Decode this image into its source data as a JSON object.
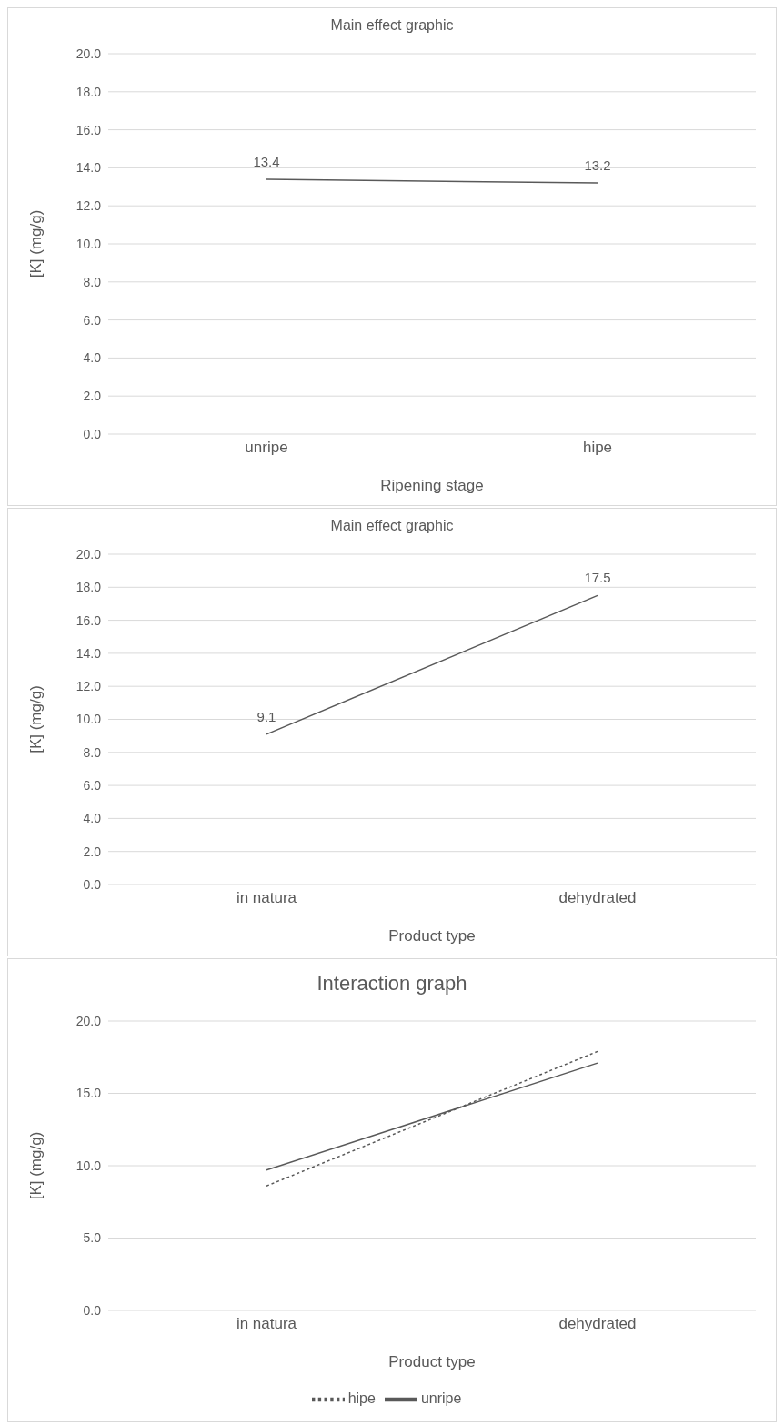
{
  "chart_data": [
    {
      "type": "line",
      "title": "Main effect graphic",
      "xlabel": "Ripening stage",
      "ylabel": "[K] (mg/g)",
      "categories": [
        "unripe",
        "hipe"
      ],
      "series": [
        {
          "color": "#595959",
          "values": [
            13.4,
            13.2
          ]
        }
      ],
      "ylim": [
        0,
        20
      ],
      "yticks": [
        {
          "value": 0,
          "label": "0.0"
        },
        {
          "value": 2,
          "label": "2.0"
        },
        {
          "value": 4,
          "label": "4.0"
        },
        {
          "value": 6,
          "label": "6.0"
        },
        {
          "value": 8,
          "label": "8.0"
        },
        {
          "value": 10,
          "label": "10.0"
        },
        {
          "value": 12,
          "label": "12.0"
        },
        {
          "value": 14,
          "label": "14.0"
        },
        {
          "value": 16,
          "label": "16.0"
        },
        {
          "value": 18,
          "label": "18.0"
        },
        {
          "value": 20,
          "label": "20.0"
        }
      ],
      "grid": "y",
      "data_labels": true,
      "marker": "none",
      "line_style": "solid"
    },
    {
      "type": "line",
      "title": "Main effect graphic",
      "xlabel": "Product type",
      "ylabel": "[K] (mg/g)",
      "categories": [
        "in natura",
        "dehydrated"
      ],
      "series": [
        {
          "color": "#595959",
          "values": [
            9.1,
            17.5
          ]
        }
      ],
      "ylim": [
        0,
        20
      ],
      "yticks": [
        {
          "value": 0,
          "label": "0.0"
        },
        {
          "value": 2,
          "label": "2.0"
        },
        {
          "value": 4,
          "label": "4.0"
        },
        {
          "value": 6,
          "label": "6.0"
        },
        {
          "value": 8,
          "label": "8.0"
        },
        {
          "value": 10,
          "label": "10.0"
        },
        {
          "value": 12,
          "label": "12.0"
        },
        {
          "value": 14,
          "label": "14.0"
        },
        {
          "value": 16,
          "label": "16.0"
        },
        {
          "value": 18,
          "label": "18.0"
        },
        {
          "value": 20,
          "label": "20.0"
        }
      ],
      "grid": "y",
      "data_labels": true,
      "marker": "none",
      "line_style": "solid"
    },
    {
      "type": "line",
      "title": "Interaction graph",
      "xlabel": "Product type",
      "ylabel": "[K] (mg/g)",
      "categories": [
        "in natura",
        "dehydrated"
      ],
      "series": [
        {
          "name": "unripe",
          "color": "#595959",
          "values": [
            9.7,
            17.1
          ],
          "line_style": "solid"
        },
        {
          "name": "hipe",
          "color": "#595959",
          "values": [
            8.6,
            17.9
          ],
          "line_style": "dotted"
        }
      ],
      "ylim": [
        0,
        20
      ],
      "yticks": [
        {
          "value": 0,
          "label": "0.0"
        },
        {
          "value": 5,
          "label": "5.0"
        },
        {
          "value": 10,
          "label": "10.0"
        },
        {
          "value": 15,
          "label": "15.0"
        },
        {
          "value": 20,
          "label": "20.0"
        }
      ],
      "grid": "y",
      "legend": "bottom",
      "marker": "none"
    }
  ]
}
